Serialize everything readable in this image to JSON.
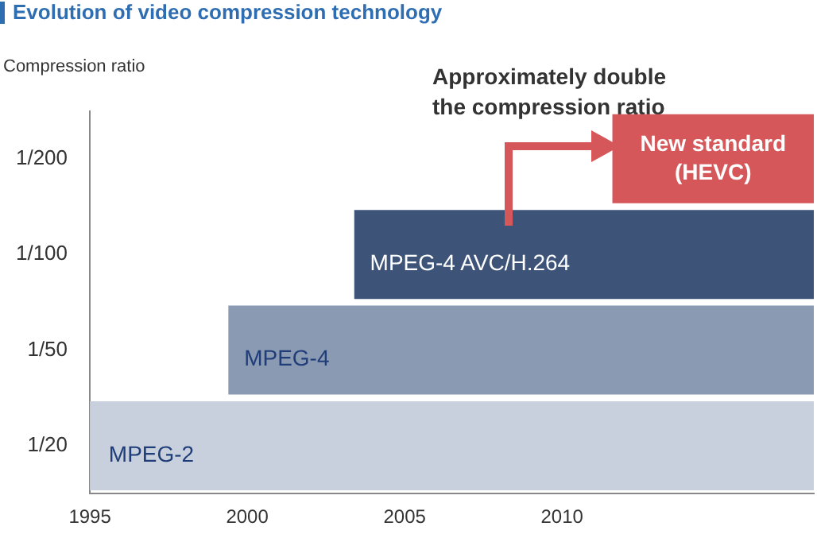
{
  "chart_data": {
    "type": "bar",
    "orientation": "horizontal",
    "title": "Evolution of video compression technology",
    "ylabel": "Compression ratio",
    "categories": [
      "1/200",
      "1/100",
      "1/50",
      "1/20"
    ],
    "base": [
      2011.6,
      2003.4,
      1999.4,
      1995
    ],
    "values": [
      6.4,
      14.6,
      18.6,
      23
    ],
    "colors": [
      "#d5575a",
      "#3d5478",
      "#8b9ab3",
      "#c9d0dd"
    ],
    "xlim": [
      1995,
      2018
    ],
    "xticks": [
      1995,
      2000,
      2005,
      2010
    ],
    "grid": false,
    "legend": false,
    "annotations": [
      {
        "text": "New standard (HEVC)",
        "x": 2014.8,
        "y": "1/200"
      },
      {
        "text": "MPEG-4 AVC/H.264",
        "x": 2003.9,
        "y": "1/100"
      },
      {
        "text": "MPEG-4",
        "x": 1999.9,
        "y": "1/50"
      },
      {
        "text": "MPEG-2",
        "x": 1995.6,
        "y": "1/20"
      },
      "Approximately double the compression ratio"
    ]
  }
}
